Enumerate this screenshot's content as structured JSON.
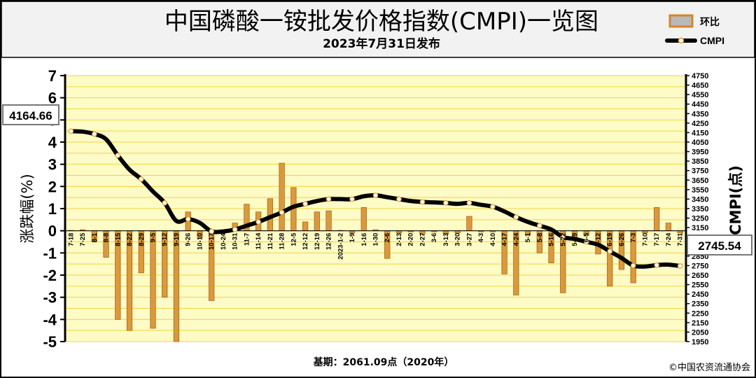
{
  "header": {
    "title": "中国磷酸一铵批发价格指数(CMPI)一览图",
    "subtitle": "2023年7月31日发布"
  },
  "legend": {
    "bar_label": "环比",
    "line_label": "CMPI",
    "placement": "top-right"
  },
  "footer": {
    "base_note": "基期：2061.09点（2020年）",
    "copyright": "©中国农资流通协会"
  },
  "callouts": {
    "start_value": "4164.66",
    "end_value": "2745.54"
  },
  "colors": {
    "plot_background": "#fdfbc6",
    "gridline": "#f0d640",
    "bar_fill": "#d89a3c",
    "bar_edge": "#a85a10",
    "line": "#000000",
    "marker": "#ffffff",
    "header_background": "#f2f2f2"
  },
  "chart_data": {
    "type": "bar",
    "title": "中国磷酸一铵批发价格指数(CMPI)一览图",
    "subtitle": "2023年7月31日发布",
    "ylabel": "涨跌幅(%)",
    "y2label": "CMPI(点)",
    "ylim": [
      -5,
      7
    ],
    "y_ticks": [
      "-5",
      "-4",
      "-3",
      "-2",
      "-1",
      "0",
      "1",
      "2",
      "3",
      "4",
      "5",
      "6",
      "7"
    ],
    "y2lim": [
      1950,
      4750
    ],
    "y2_ticks": [
      "1950",
      "2050",
      "2150",
      "2250",
      "2350",
      "2450",
      "2550",
      "2650",
      "2750",
      "2850",
      "2950",
      "3050",
      "3150",
      "3250",
      "3350",
      "3450",
      "3550",
      "3650",
      "3750",
      "3850",
      "3950",
      "4050",
      "4150",
      "4250",
      "4350",
      "4450",
      "4550",
      "4650",
      "4750"
    ],
    "grid": true,
    "x_labels": [
      "7-18",
      "7-25",
      "8-1",
      "8-8",
      "8-15",
      "8-22",
      "8-29",
      "9-5",
      "9-12",
      "9-19",
      "9-26",
      "10-10",
      "10-17",
      "10-24",
      "10-31",
      "11-7",
      "11-14",
      "11-21",
      "11-28",
      "12-5",
      "12-12",
      "12-19",
      "12-26",
      "2023-1-2",
      "1-9",
      "1-16",
      "1-30",
      "2-6",
      "2-13",
      "2-20",
      "2-27",
      "3-6",
      "3-13",
      "3-20",
      "3-27",
      "4-3",
      "4-10",
      "4-17",
      "4-24",
      "5-1",
      "5-8",
      "5-16",
      "5-22",
      "5-29",
      "6-5",
      "6-12",
      "6-19",
      "6-26",
      "7-3",
      "7-10",
      "7-17",
      "7-24",
      "7-31"
    ],
    "series": [
      {
        "name": "环比",
        "type": "bar",
        "axis": "left",
        "values": [
          0.02,
          0.05,
          -0.5,
          -1.2,
          -4.0,
          -4.5,
          -1.9,
          -4.4,
          -3.0,
          -5.0,
          0.85,
          -0.3,
          -3.15,
          -0.05,
          0.35,
          1.2,
          0.85,
          1.45,
          3.05,
          1.95,
          0.4,
          0.85,
          0.9,
          0.02,
          -0.1,
          1.05,
          0.05,
          -1.25,
          -0.1,
          -0.05,
          -0.15,
          -0.05,
          -0.15,
          -0.1,
          0.65,
          -0.05,
          -0.05,
          -1.95,
          -2.9,
          -0.2,
          -1.0,
          -1.45,
          -2.8,
          -0.3,
          -0.2,
          -1.05,
          -2.5,
          -1.75,
          -2.35,
          -0.1,
          1.05,
          0.35,
          -0.1
        ]
      },
      {
        "name": "CMPI",
        "type": "line",
        "axis": "right",
        "values": [
          4164.66,
          4160,
          4135,
          4080,
          3910,
          3760,
          3660,
          3530,
          3410,
          3220,
          3240,
          3200,
          3110,
          3110,
          3130,
          3170,
          3210,
          3260,
          3310,
          3370,
          3400,
          3430,
          3450,
          3450,
          3450,
          3480,
          3490,
          3470,
          3450,
          3430,
          3420,
          3415,
          3410,
          3400,
          3410,
          3390,
          3370,
          3320,
          3260,
          3210,
          3170,
          3130,
          3050,
          3030,
          3000,
          2970,
          2900,
          2830,
          2750,
          2740,
          2755,
          2760,
          2745.54
        ]
      }
    ]
  }
}
